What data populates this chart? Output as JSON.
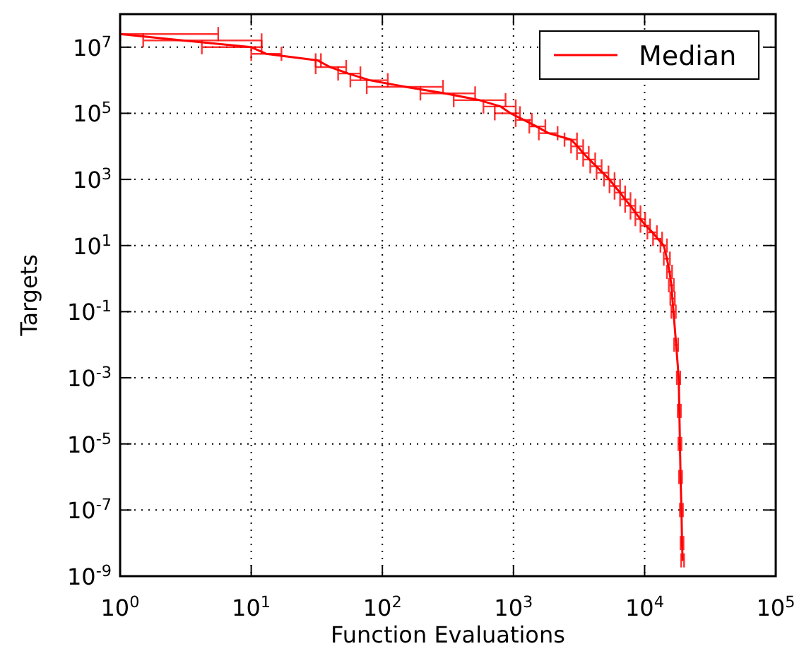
{
  "chart_data": {
    "type": "line",
    "xlabel": "Function Evaluations",
    "ylabel": "Targets",
    "log": "xy",
    "grid": true,
    "legend": "top right",
    "marker": "none",
    "line_style": "solid",
    "xlim": [
      1,
      100000
    ],
    "ylim": [
      1e-09,
      100000000.0
    ],
    "xticks": [
      {
        "value": 1,
        "label": "10$^{0}$"
      },
      {
        "value": 10,
        "label": "10$^{1}$"
      },
      {
        "value": 100,
        "label": "10$^{2}$"
      },
      {
        "value": 1000,
        "label": "10$^{3}$"
      },
      {
        "value": 10000,
        "label": "10$^{4}$"
      },
      {
        "value": 100000,
        "label": "10$^{5}$"
      }
    ],
    "yticks": [
      {
        "value": 1e-09,
        "label": "10$^{-9}$"
      },
      {
        "value": 1e-07,
        "label": "10$^{-7}$"
      },
      {
        "value": 1e-05,
        "label": "10$^{-5}$"
      },
      {
        "value": 0.001,
        "label": "10$^{-3}$"
      },
      {
        "value": 0.1,
        "label": "10$^{-1}$"
      },
      {
        "value": 10,
        "label": "10$^{1}$"
      },
      {
        "value": 1000,
        "label": "10$^{3}$"
      },
      {
        "value": 100000,
        "label": "10$^{5}$"
      },
      {
        "value": 10000000,
        "label": "10$^{7}$"
      }
    ],
    "series": [
      {
        "name": "Median",
        "color": "#ff0000",
        "x": [
          1,
          3,
          10,
          13,
          32,
          40,
          55,
          80,
          150,
          300,
          550,
          800,
          950,
          1200,
          1500,
          1850,
          2750,
          3080,
          3400,
          3800,
          4270,
          4790,
          5400,
          5900,
          6500,
          7100,
          7800,
          8500,
          9300,
          10200,
          11500,
          12600,
          14000,
          14800,
          15500,
          16000,
          16300,
          16600,
          17400,
          18200,
          18400,
          18600,
          18800,
          19100,
          19300,
          19500
        ],
        "values": [
          25000000.0,
          16000000.0,
          10000000.0,
          6300000.0,
          4000000.0,
          2500000.0,
          1600000.0,
          1000000.0,
          630000.0,
          400000.0,
          250000.0,
          160000.0,
          100000.0,
          63000.0,
          40000.0,
          25000.0,
          16000.0,
          10000.0,
          6300,
          4000,
          2500,
          1600,
          1000,
          630,
          400,
          250,
          160,
          100,
          63,
          40,
          25,
          16,
          10,
          4,
          1.6,
          0.63,
          0.25,
          0.1,
          0.01,
          0.001,
          0.0001,
          1e-05,
          1e-06,
          1e-07,
          1e-08,
          3e-09
        ],
        "xerrors": [
          [
            1,
            5.6
          ],
          [
            1.5,
            12
          ],
          [
            4.2,
            12
          ],
          [
            10,
            17
          ],
          [
            31,
            34
          ],
          [
            31,
            53
          ],
          [
            46,
            68
          ],
          [
            57,
            110
          ],
          [
            76,
            290
          ],
          [
            195,
            510
          ],
          [
            350,
            870
          ],
          [
            590,
            1040
          ],
          [
            720,
            1120
          ],
          [
            1040,
            1380
          ],
          [
            1320,
            1750
          ],
          [
            1560,
            2170
          ],
          [
            2450,
            3050
          ],
          [
            2750,
            3400
          ],
          [
            3050,
            3750
          ],
          [
            3400,
            4200
          ],
          [
            3850,
            4700
          ],
          [
            4300,
            5300
          ],
          [
            4900,
            5900
          ],
          [
            5400,
            6500
          ],
          [
            5900,
            7100
          ],
          [
            6500,
            7800
          ],
          [
            7100,
            8500
          ],
          [
            7800,
            9300
          ],
          [
            8500,
            10100
          ],
          [
            9300,
            11000
          ],
          [
            10500,
            12400
          ],
          [
            11600,
            13600
          ],
          [
            13200,
            14800
          ],
          [
            14000,
            15600
          ],
          [
            14800,
            16200
          ],
          [
            15300,
            16700
          ],
          [
            15700,
            17000
          ],
          [
            16000,
            17300
          ],
          [
            16800,
            18000
          ],
          [
            17600,
            18700
          ],
          [
            17900,
            18900
          ],
          [
            18100,
            19100
          ],
          [
            18300,
            19300
          ],
          [
            18600,
            19600
          ],
          [
            18800,
            19800
          ],
          [
            19000,
            20000
          ]
        ]
      }
    ]
  }
}
